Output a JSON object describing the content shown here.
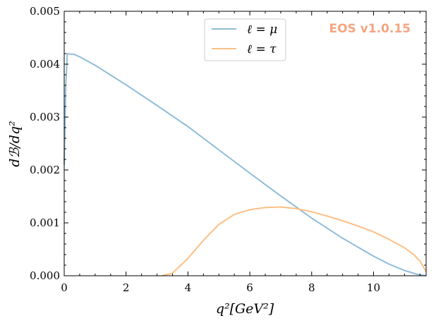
{
  "watermark": {
    "text": "EOS v1.0.15",
    "color": "#f4a582"
  },
  "chart_data": {
    "type": "line",
    "xlabel": "q²[GeV²]",
    "ylabel": "dℬ/dq²",
    "xlim": [
      0,
      11.7
    ],
    "ylim": [
      0,
      0.005
    ],
    "xticks": [
      0,
      2,
      4,
      6,
      8,
      10
    ],
    "xtick_labels": [
      "0",
      "2",
      "4",
      "6",
      "8",
      "10"
    ],
    "yticks": [
      0,
      0.001,
      0.002,
      0.003,
      0.004,
      0.005
    ],
    "ytick_labels": [
      "0.000",
      "0.001",
      "0.002",
      "0.003",
      "0.004",
      "0.005"
    ],
    "grid": false,
    "legend_position": "top-center",
    "series": [
      {
        "name": "ℓ = μ",
        "color": "#8fbcd9",
        "x": [
          0.0,
          0.05,
          0.1,
          0.2,
          0.3,
          0.5,
          1.0,
          2.0,
          3.0,
          4.0,
          5.0,
          6.0,
          7.0,
          8.0,
          9.0,
          10.0,
          10.5,
          11.0,
          11.4,
          11.7
        ],
        "y": [
          0.0021,
          0.0036,
          0.0042,
          0.00419,
          0.00419,
          0.00414,
          0.00398,
          0.00361,
          0.00322,
          0.00282,
          0.00238,
          0.00194,
          0.00151,
          0.00109,
          0.00071,
          0.00037,
          0.00022,
          0.0001,
          3e-05,
          0.0
        ]
      },
      {
        "name": "ℓ = τ",
        "color": "#fdbf85",
        "x": [
          3.16,
          3.5,
          4.0,
          4.5,
          5.0,
          5.5,
          6.0,
          6.5,
          7.0,
          7.5,
          8.0,
          8.5,
          9.0,
          9.5,
          10.0,
          10.5,
          11.0,
          11.3,
          11.5,
          11.7
        ],
        "y": [
          0.0,
          5e-05,
          0.00033,
          0.00067,
          0.00097,
          0.00116,
          0.00125,
          0.00129,
          0.0013,
          0.00127,
          0.00121,
          0.00113,
          0.00104,
          0.00094,
          0.00083,
          0.00069,
          0.00053,
          0.0004,
          0.00028,
          8e-05
        ]
      }
    ]
  }
}
